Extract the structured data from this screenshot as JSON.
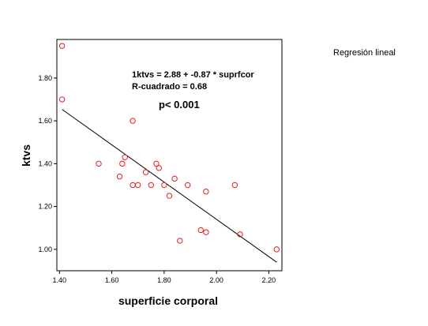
{
  "chart_data": {
    "type": "scatter",
    "xlabel": "superficie corporal",
    "ylabel": "ktvs",
    "xlim": [
      1.39,
      2.25
    ],
    "ylim": [
      0.9,
      1.98
    ],
    "x_ticks": [
      "1.40",
      "1.60",
      "1.80",
      "2.00",
      "2.20"
    ],
    "y_ticks": [
      "1.00",
      "1.20",
      "1.40",
      "1.60",
      "1.80"
    ],
    "grid": false,
    "legend_label": "Regresión lineal",
    "legend_position": "top-right",
    "annotations": {
      "equation": "1ktvs = 2.88 + -0.87 * suprfcor",
      "r_squared": "R-cuadrado = 0.68",
      "p_value": "p< 0.001"
    },
    "regression": {
      "intercept": 2.88,
      "slope": -0.87,
      "x_range": [
        1.41,
        2.23
      ]
    },
    "marker_color": "#e02020",
    "line_color": "#000000",
    "points": [
      {
        "x": 1.41,
        "y": 1.95
      },
      {
        "x": 1.41,
        "y": 1.7
      },
      {
        "x": 1.55,
        "y": 1.4
      },
      {
        "x": 1.63,
        "y": 1.34
      },
      {
        "x": 1.64,
        "y": 1.4
      },
      {
        "x": 1.65,
        "y": 1.43
      },
      {
        "x": 1.68,
        "y": 1.6
      },
      {
        "x": 1.68,
        "y": 1.3
      },
      {
        "x": 1.7,
        "y": 1.3
      },
      {
        "x": 1.73,
        "y": 1.36
      },
      {
        "x": 1.75,
        "y": 1.3
      },
      {
        "x": 1.77,
        "y": 1.4
      },
      {
        "x": 1.78,
        "y": 1.38
      },
      {
        "x": 1.8,
        "y": 1.3
      },
      {
        "x": 1.82,
        "y": 1.25
      },
      {
        "x": 1.84,
        "y": 1.33
      },
      {
        "x": 1.86,
        "y": 1.04
      },
      {
        "x": 1.89,
        "y": 1.3
      },
      {
        "x": 1.94,
        "y": 1.09
      },
      {
        "x": 1.96,
        "y": 1.27
      },
      {
        "x": 1.96,
        "y": 1.08
      },
      {
        "x": 2.07,
        "y": 1.3
      },
      {
        "x": 2.09,
        "y": 1.07
      },
      {
        "x": 2.23,
        "y": 1.0
      }
    ]
  }
}
